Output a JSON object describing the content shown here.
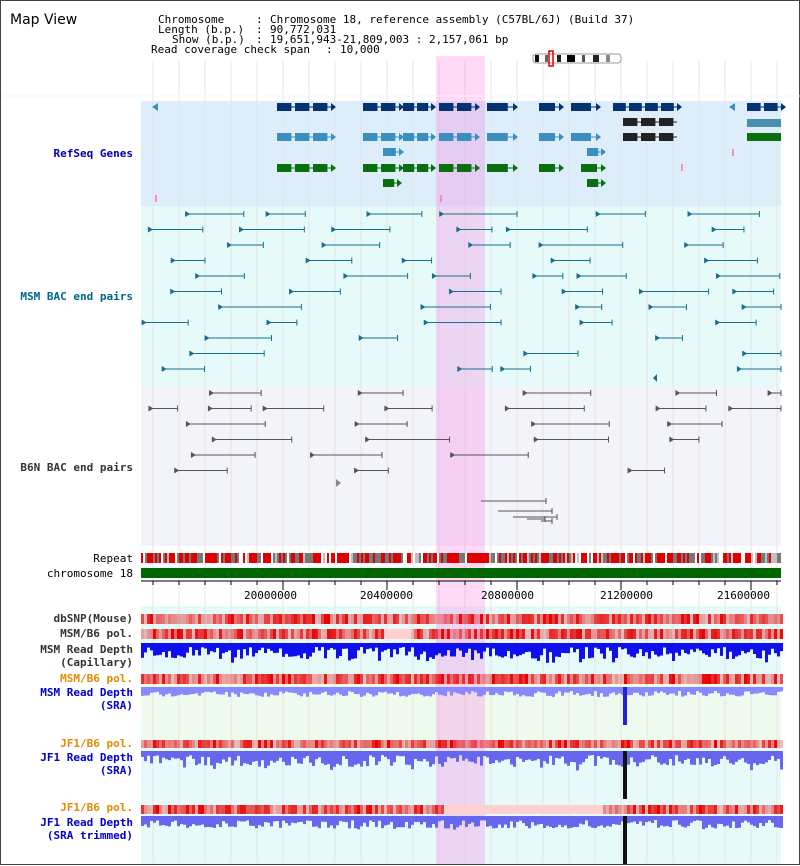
{
  "view_title": "Map View",
  "info": {
    "chromosome_label": "Chromosome",
    "chromosome_value": "Chromosome 18, reference assembly (C57BL/6J) (Build 37)",
    "length_label": "Length (b.p.)",
    "length_value": "90,772,031",
    "show_label": "Show (b.p.)",
    "show_value": "19,651,943-21,809,003 : 2,157,061 bp",
    "coverage_label": "Read coverage check span",
    "coverage_value": "10,000"
  },
  "tracks": {
    "refseq": "RefSeq Genes",
    "msm_bac": "MSM BAC end pairs",
    "b6n_bac": "B6N BAC end pairs",
    "repeat": "Repeat",
    "chromosome": "chromosome 18",
    "dbsnp": "dbSNP(Mouse)",
    "msm_b6_pol_1": "MSM/B6 pol.",
    "msm_depth_cap_1": "MSM Read Depth",
    "msm_depth_cap_2": "(Capillary)",
    "msm_b6_pol_2": "MSM/B6 pol.",
    "msm_depth_sra_1": "MSM Read Depth",
    "msm_depth_sra_2": "(SRA)",
    "jf1_b6_pol_1": "JF1/B6 pol.",
    "jf1_depth_sra_1": "JF1 Read Depth",
    "jf1_depth_sra_2": "(SRA)",
    "jf1_b6_pol_2": "JF1/B6 pol.",
    "jf1_depth_trim_1": "JF1 Read Depth",
    "jf1_depth_trim_2": "(SRA trimmed)"
  },
  "axis_ticks": [
    "20000000",
    "20400000",
    "20800000",
    "21200000",
    "21600000"
  ],
  "colors": {
    "refseq_label": "#0000aa",
    "msm_label": "#006688",
    "b6n_label": "#333333",
    "orange_label": "#e08a00",
    "blue_label": "#0000cc",
    "highlight": "#ff66dd",
    "chromosome_bar": "#006600"
  }
}
